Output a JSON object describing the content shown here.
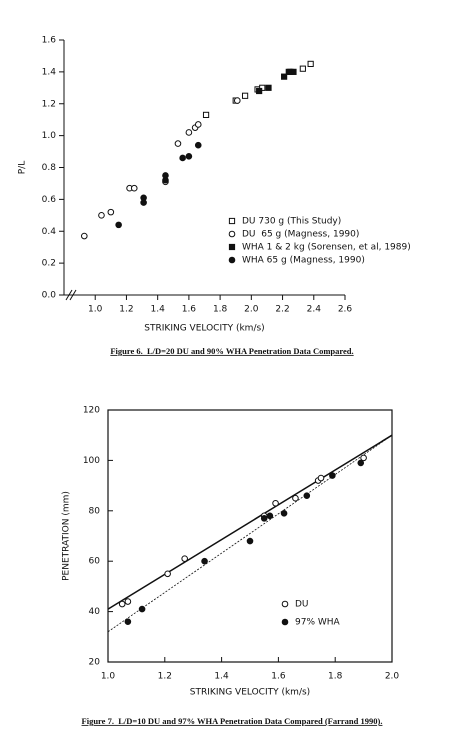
{
  "chart_data": [
    {
      "type": "scatter",
      "caption": "Figure 6.  L/D=20 DU and 90% WHA Penetration Data Compared.",
      "xlabel": "STRIKING VELOCITY (km/s)",
      "ylabel": "P/L",
      "xlim": [
        0.8,
        2.6
      ],
      "ylim": [
        0,
        1.6
      ],
      "xticks": [
        {
          "value": 1,
          "label": "1.0"
        },
        1.2,
        1.4,
        1.6,
        1.8,
        {
          "value": 2,
          "label": "2.0"
        },
        2.2,
        2.4,
        2.6
      ],
      "yticks": [
        {
          "value": 0,
          "label": "0.0"
        },
        0.2,
        0.4,
        0.6,
        0.8,
        {
          "value": 1,
          "label": "1.0"
        },
        1.2,
        1.4,
        1.6
      ],
      "axis_break": true,
      "frame": false,
      "series": [
        {
          "name": "DU 730 g (This Study)",
          "marker": "square-open",
          "color": "#111",
          "x": [
            1.71,
            1.9,
            1.96,
            2.04,
            2.07,
            2.25,
            2.33,
            2.38
          ],
          "values": [
            1.13,
            1.22,
            1.25,
            1.29,
            1.3,
            1.4,
            1.42,
            1.45
          ]
        },
        {
          "name": "DU  65 g (Magness, 1990)",
          "marker": "circle-open",
          "color": "#111",
          "x": [
            0.93,
            1.04,
            1.1,
            1.22,
            1.25,
            1.45,
            1.53,
            1.6,
            1.64,
            1.66,
            1.91
          ],
          "values": [
            0.37,
            0.5,
            0.52,
            0.67,
            0.67,
            0.71,
            0.95,
            1.02,
            1.05,
            1.07,
            1.22
          ]
        },
        {
          "name": "WHA 1 & 2 kg (Sorensen, et al, 1989)",
          "marker": "square",
          "color": "#111",
          "x": [
            2.05,
            2.11,
            2.21,
            2.24,
            2.27
          ],
          "values": [
            1.28,
            1.3,
            1.37,
            1.4,
            1.4
          ]
        },
        {
          "name": "WHA 65 g (Magness, 1990)",
          "marker": "circle",
          "color": "#111",
          "x": [
            1.15,
            1.31,
            1.31,
            1.45,
            1.45,
            1.56,
            1.6,
            1.66
          ],
          "values": [
            0.44,
            0.61,
            0.58,
            0.75,
            0.72,
            0.86,
            0.87,
            0.94
          ]
        }
      ]
    },
    {
      "type": "scatter",
      "caption": "Figure 7.  L/D=10 DU and 97% WHA Penetration Data Compared (Farrand 1990).",
      "xlabel": "STRIKING VELOCITY (km/s)",
      "ylabel": "PENETRATION (mm)",
      "xlim": [
        1,
        2
      ],
      "ylim": [
        20,
        120
      ],
      "xticks": [
        {
          "value": 1,
          "label": "1.0"
        },
        1.2,
        1.4,
        1.6,
        1.8,
        {
          "value": 2,
          "label": "2.0"
        }
      ],
      "yticks": [
        20,
        40,
        60,
        80,
        100,
        120
      ],
      "axis_break": false,
      "frame": true,
      "series": [
        {
          "name": "DU",
          "marker": "circle-open",
          "color": "#111",
          "x": [
            1.05,
            1.07,
            1.21,
            1.27,
            1.55,
            1.59,
            1.66,
            1.74,
            1.75,
            1.9
          ],
          "values": [
            43,
            44,
            55,
            61,
            78,
            83,
            85,
            92,
            93,
            101
          ]
        },
        {
          "name": "97% WHA",
          "marker": "circle",
          "color": "#111",
          "x": [
            1.07,
            1.12,
            1.34,
            1.5,
            1.55,
            1.57,
            1.62,
            1.7,
            1.79,
            1.89
          ],
          "values": [
            36,
            41,
            60,
            68,
            77,
            78,
            79,
            86,
            94,
            99
          ]
        }
      ],
      "trend_lines": [
        {
          "x": [
            1,
            2
          ],
          "values": [
            41,
            110
          ],
          "dash": false
        },
        {
          "x": [
            1,
            2
          ],
          "values": [
            32,
            110
          ],
          "dash": true
        }
      ]
    }
  ]
}
